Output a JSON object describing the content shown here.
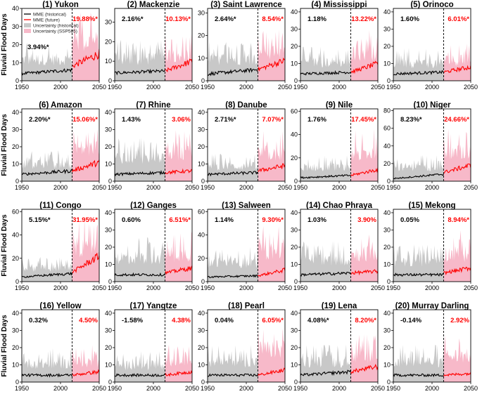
{
  "figure": {
    "ylabel": "Fluvial Flood Days",
    "colors": {
      "historical_line": "#000000",
      "future_line": "#ff0000",
      "historical_band": "#c8c8c8",
      "future_band": "#f7b9c9",
      "future_trend_text": "#ff0000",
      "hist_trend_text": "#000000"
    }
  },
  "legend": {
    "items": [
      {
        "label": "MME (historical)",
        "kind": "line",
        "color": "#000000"
      },
      {
        "label": "MME (future)",
        "kind": "line",
        "color": "#ff0000"
      },
      {
        "label": "Uncertainty (historical)",
        "kind": "patch",
        "color": "#c8c8c8"
      },
      {
        "label": "Uncertainty (SSP585)",
        "kind": "patch",
        "color": "#f7b9c9"
      }
    ]
  },
  "chart_data": {
    "type": "area",
    "xlabel": "",
    "ylabel": "Fluvial Flood Days",
    "xlim": [
      1950,
      2050
    ],
    "xticks": [
      1950,
      2000,
      2050
    ],
    "split_year": 2015,
    "panels": [
      {
        "title": "(1) Yukon",
        "ymax": 40,
        "yticks": [
          0,
          10,
          20,
          30,
          40
        ],
        "hist_trend": "3.94%*",
        "fut_trend": "19.88%*",
        "mme_hist": [
          4,
          6
        ],
        "mme_fut": [
          8,
          15
        ],
        "band_hist_max": 22,
        "band_fut_max": 40
      },
      {
        "title": "(2) Mackenzie",
        "ymax": 37,
        "yticks": [
          0,
          10,
          20,
          30
        ],
        "hist_trend": "2.16%*",
        "fut_trend": "10.13%*",
        "mme_hist": [
          4,
          5
        ],
        "mme_fut": [
          5,
          10
        ],
        "band_hist_max": 21,
        "band_fut_max": 25
      },
      {
        "title": "(3) Saint Lawrence",
        "ymax": 32,
        "yticks": [
          0,
          10,
          20,
          30
        ],
        "hist_trend": "2.64%*",
        "fut_trend": "8.54%*",
        "mme_hist": [
          3,
          5
        ],
        "mme_fut": [
          5,
          9
        ],
        "band_hist_max": 18,
        "band_fut_max": 24
      },
      {
        "title": "(4) Mississippi",
        "ymax": 42,
        "yticks": [
          0,
          10,
          20,
          30,
          40
        ],
        "hist_trend": "1.18%",
        "fut_trend": "13.22%*",
        "mme_hist": [
          4,
          5
        ],
        "mme_fut": [
          5,
          10
        ],
        "band_hist_max": 20,
        "band_fut_max": 30
      },
      {
        "title": "(5) Orinoco",
        "ymax": 42,
        "yticks": [
          0,
          10,
          20,
          30,
          40
        ],
        "hist_trend": "1.60%",
        "fut_trend": "6.01%*",
        "mme_hist": [
          4,
          5
        ],
        "mme_fut": [
          5,
          8
        ],
        "band_hist_max": 19,
        "band_fut_max": 22
      },
      {
        "title": "(6) Amazon",
        "ymax": 42,
        "yticks": [
          0,
          10,
          20,
          30,
          40
        ],
        "hist_trend": "2.20%*",
        "fut_trend": "15.06%*",
        "mme_hist": [
          4,
          6
        ],
        "mme_fut": [
          6,
          11
        ],
        "band_hist_max": 18,
        "band_fut_max": 35
      },
      {
        "title": "(7) Rhine",
        "ymax": 42,
        "yticks": [
          0,
          10,
          20,
          30,
          40
        ],
        "hist_trend": "1.43%",
        "fut_trend": "3.06%",
        "mme_hist": [
          4,
          5
        ],
        "mme_fut": [
          5,
          6
        ],
        "band_hist_max": 26,
        "band_fut_max": 30
      },
      {
        "title": "(8) Danube",
        "ymax": 42,
        "yticks": [
          0,
          10,
          20,
          30,
          40
        ],
        "hist_trend": "2.71%*",
        "fut_trend": "7.07%*",
        "mme_hist": [
          4,
          5
        ],
        "mme_fut": [
          6,
          9
        ],
        "band_hist_max": 16,
        "band_fut_max": 30
      },
      {
        "title": "(9) Nile",
        "ymax": 62,
        "yticks": [
          0,
          20,
          40,
          60
        ],
        "hist_trend": "1.76%",
        "fut_trend": "17.45%*",
        "mme_hist": [
          3,
          5
        ],
        "mme_fut": [
          5,
          10
        ],
        "band_hist_max": 22,
        "band_fut_max": 45
      },
      {
        "title": "(10) Niger",
        "ymax": 82,
        "yticks": [
          0,
          20,
          40,
          60,
          80
        ],
        "hist_trend": "8.23%*",
        "fut_trend": "24.66%*",
        "mme_hist": [
          3,
          8
        ],
        "mme_fut": [
          10,
          18
        ],
        "band_hist_max": 30,
        "band_fut_max": 60
      },
      {
        "title": "(11) Congo",
        "ymax": 62,
        "yticks": [
          0,
          20,
          40,
          60
        ],
        "hist_trend": "5.15%*",
        "fut_trend": "31.95%*",
        "mme_hist": [
          4,
          7
        ],
        "mme_fut": [
          8,
          22
        ],
        "band_hist_max": 22,
        "band_fut_max": 55
      },
      {
        "title": "(12) Ganges",
        "ymax": 42,
        "yticks": [
          0,
          10,
          20,
          30,
          40
        ],
        "hist_trend": "0.60%",
        "fut_trend": "6.51%*",
        "mme_hist": [
          4,
          4
        ],
        "mme_fut": [
          5,
          8
        ],
        "band_hist_max": 26,
        "band_fut_max": 30
      },
      {
        "title": "(13) Salween",
        "ymax": 62,
        "yticks": [
          0,
          20,
          40,
          60
        ],
        "hist_trend": "1.14%",
        "fut_trend": "9.30%*",
        "mme_hist": [
          4,
          5
        ],
        "mme_fut": [
          5,
          10
        ],
        "band_hist_max": 30,
        "band_fut_max": 48
      },
      {
        "title": "(14) Chao Phraya",
        "ymax": 42,
        "yticks": [
          0,
          10,
          20,
          30,
          40
        ],
        "hist_trend": "1.03%",
        "fut_trend": "3.90%",
        "mme_hist": [
          4,
          5
        ],
        "mme_fut": [
          5,
          6
        ],
        "band_hist_max": 24,
        "band_fut_max": 30
      },
      {
        "title": "(15) Mekong",
        "ymax": 42,
        "yticks": [
          0,
          10,
          20,
          30,
          40
        ],
        "hist_trend": "0.05%",
        "fut_trend": "8.94%*",
        "mme_hist": [
          4,
          4
        ],
        "mme_fut": [
          5,
          8
        ],
        "band_hist_max": 22,
        "band_fut_max": 30
      },
      {
        "title": "(16) Yellow",
        "ymax": 42,
        "yticks": [
          0,
          10,
          20,
          30,
          40
        ],
        "hist_trend": "0.32%",
        "fut_trend": "4.50%",
        "mme_hist": [
          4,
          4
        ],
        "mme_fut": [
          4,
          6
        ],
        "band_hist_max": 20,
        "band_fut_max": 22
      },
      {
        "title": "(17) Yangtze",
        "ymax": 42,
        "yticks": [
          0,
          10,
          20,
          30,
          40
        ],
        "hist_trend": "-1.58%",
        "fut_trend": "4.38%",
        "mme_hist": [
          4,
          4
        ],
        "mme_fut": [
          4,
          6
        ],
        "band_hist_max": 18,
        "band_fut_max": 22
      },
      {
        "title": "(18) Pearl",
        "ymax": 42,
        "yticks": [
          0,
          10,
          20,
          30,
          40
        ],
        "hist_trend": "0.04%",
        "fut_trend": "6.05%*",
        "mme_hist": [
          4,
          4
        ],
        "mme_fut": [
          4,
          7
        ],
        "band_hist_max": 22,
        "band_fut_max": 35
      },
      {
        "title": "(19) Lena",
        "ymax": 42,
        "yticks": [
          0,
          10,
          20,
          30,
          40
        ],
        "hist_trend": "4.08%*",
        "fut_trend": "8.20%*",
        "mme_hist": [
          4,
          6
        ],
        "mme_fut": [
          6,
          9
        ],
        "band_hist_max": 22,
        "band_fut_max": 28
      },
      {
        "title": "(20) Murray Darling",
        "ymax": 42,
        "yticks": [
          0,
          10,
          20,
          30,
          40
        ],
        "hist_trend": "-0.14%",
        "fut_trend": "2.92%",
        "mme_hist": [
          4,
          4
        ],
        "mme_fut": [
          4,
          5
        ],
        "band_hist_max": 22,
        "band_fut_max": 28
      }
    ]
  }
}
